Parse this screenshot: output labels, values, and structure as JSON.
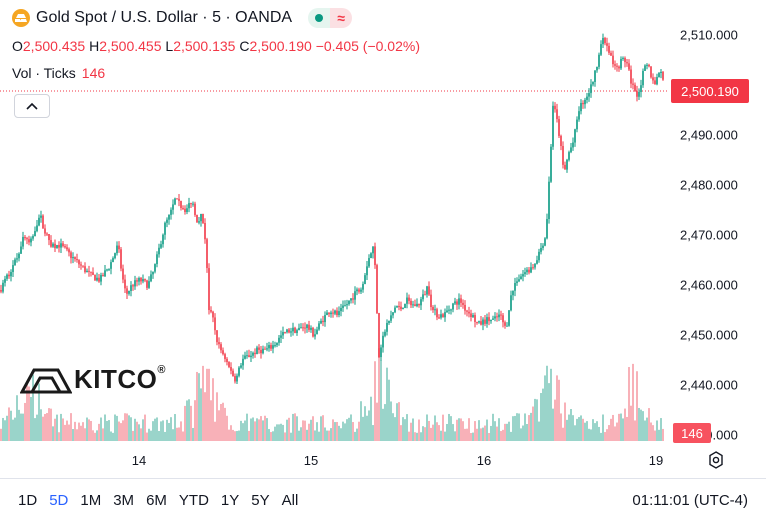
{
  "header": {
    "title": "Gold Spot / U.S. Dollar · 5 · OANDA",
    "open_label": "O",
    "open": "2,500.435",
    "high_label": "H",
    "high": "2,500.455",
    "low_label": "L",
    "low": "2,500.135",
    "close_label": "C",
    "close": "2,500.190",
    "change": "−0.405 (−0.02%)",
    "vol_label": "Vol · Ticks",
    "vol_value": "146",
    "status_pill": [
      "market-open-dot",
      "approx-icon"
    ]
  },
  "price_tag": "2,500.190",
  "volume_tag": "146",
  "logo": {
    "text": "KITCO",
    "mark": "®"
  },
  "colors": {
    "up": "#089981",
    "down": "#f23645",
    "vol_up": "#8fd0c4",
    "vol_down": "#f7a9b0"
  },
  "bottom_bar": {
    "ranges": [
      "1D",
      "5D",
      "1M",
      "3M",
      "6M",
      "YTD",
      "1Y",
      "5Y",
      "All"
    ],
    "active_range": "5D",
    "time": "01:11:01 (UTC-4)"
  },
  "chart_data": {
    "type": "line",
    "y_axis_ticks": [
      "2,510.000",
      "2,500.000",
      "2,490.000",
      "2,480.000",
      "2,470.000",
      "2,460.000",
      "2,450.000",
      "2,440.000",
      "2,430.000"
    ],
    "ylim": [
      2425,
      2513
    ],
    "x_axis_ticks": [
      "14",
      "15",
      "16",
      "19"
    ],
    "last_price": 2500.19,
    "price_series": [
      [
        0,
        2459
      ],
      [
        8,
        2462
      ],
      [
        16,
        2465
      ],
      [
        24,
        2470
      ],
      [
        30,
        2468
      ],
      [
        36,
        2472
      ],
      [
        40,
        2474
      ],
      [
        46,
        2470
      ],
      [
        52,
        2468
      ],
      [
        60,
        2468
      ],
      [
        70,
        2466
      ],
      [
        80,
        2464
      ],
      [
        90,
        2462
      ],
      [
        100,
        2461
      ],
      [
        110,
        2464
      ],
      [
        118,
        2468
      ],
      [
        122,
        2462
      ],
      [
        126,
        2458
      ],
      [
        132,
        2460
      ],
      [
        140,
        2461
      ],
      [
        148,
        2460
      ],
      [
        154,
        2463
      ],
      [
        160,
        2468
      ],
      [
        165,
        2472
      ],
      [
        170,
        2474
      ],
      [
        175,
        2477
      ],
      [
        180,
        2476
      ],
      [
        186,
        2475
      ],
      [
        192,
        2477
      ],
      [
        197,
        2473
      ],
      [
        202,
        2474
      ],
      [
        206,
        2468
      ],
      [
        209,
        2455
      ],
      [
        213,
        2453
      ],
      [
        218,
        2448
      ],
      [
        224,
        2446
      ],
      [
        230,
        2443
      ],
      [
        236,
        2441
      ],
      [
        242,
        2445
      ],
      [
        250,
        2446
      ],
      [
        258,
        2447
      ],
      [
        266,
        2447
      ],
      [
        274,
        2448
      ],
      [
        282,
        2450
      ],
      [
        290,
        2451
      ],
      [
        298,
        2451
      ],
      [
        306,
        2452
      ],
      [
        314,
        2450
      ],
      [
        322,
        2453
      ],
      [
        330,
        2455
      ],
      [
        338,
        2454
      ],
      [
        346,
        2456
      ],
      [
        354,
        2458
      ],
      [
        362,
        2460
      ],
      [
        368,
        2465
      ],
      [
        374,
        2468
      ],
      [
        377,
        2455
      ],
      [
        379,
        2446
      ],
      [
        382,
        2449
      ],
      [
        387,
        2452
      ],
      [
        392,
        2454
      ],
      [
        396,
        2456
      ],
      [
        400,
        2455
      ],
      [
        406,
        2457
      ],
      [
        412,
        2456
      ],
      [
        418,
        2456
      ],
      [
        424,
        2458
      ],
      [
        428,
        2460
      ],
      [
        432,
        2455
      ],
      [
        438,
        2454
      ],
      [
        444,
        2454
      ],
      [
        452,
        2456
      ],
      [
        460,
        2457
      ],
      [
        466,
        2455
      ],
      [
        472,
        2454
      ],
      [
        478,
        2452
      ],
      [
        486,
        2453
      ],
      [
        494,
        2453
      ],
      [
        500,
        2454
      ],
      [
        506,
        2451
      ],
      [
        510,
        2457
      ],
      [
        516,
        2461
      ],
      [
        522,
        2462
      ],
      [
        528,
        2463
      ],
      [
        534,
        2464
      ],
      [
        540,
        2467
      ],
      [
        546,
        2470
      ],
      [
        550,
        2484
      ],
      [
        553,
        2496
      ],
      [
        556,
        2494
      ],
      [
        560,
        2489
      ],
      [
        564,
        2482
      ],
      [
        568,
        2486
      ],
      [
        574,
        2489
      ],
      [
        578,
        2495
      ],
      [
        584,
        2497
      ],
      [
        590,
        2499
      ],
      [
        596,
        2503
      ],
      [
        600,
        2508
      ],
      [
        604,
        2509
      ],
      [
        610,
        2506
      ],
      [
        616,
        2503
      ],
      [
        622,
        2505
      ],
      [
        626,
        2505
      ],
      [
        632,
        2500
      ],
      [
        638,
        2498
      ],
      [
        644,
        2503
      ],
      [
        648,
        2504
      ],
      [
        654,
        2500
      ],
      [
        660,
        2503
      ],
      [
        664,
        2500
      ]
    ]
  }
}
